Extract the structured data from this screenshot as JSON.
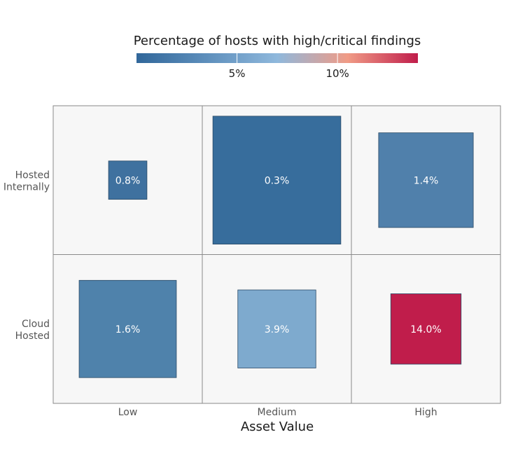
{
  "chart_data": {
    "type": "heatmap",
    "title": "",
    "legend_title": "Percentage of hosts with high/critical findings",
    "legend_ticks": [
      "5%",
      "10%"
    ],
    "legend_tick_values": [
      5,
      10
    ],
    "legend_range": [
      0,
      14
    ],
    "legend_placement": "top",
    "legend_colors": [
      "#31679a",
      "#5e8fbc",
      "#8fb8dc",
      "#f09b86",
      "#c01d4b"
    ],
    "xlabel": "Asset Value",
    "ylabel": "",
    "x_categories": [
      "Low",
      "Medium",
      "High"
    ],
    "y_categories": [
      [
        "Hosted",
        "Internally"
      ],
      [
        "Cloud",
        "Hosted"
      ]
    ],
    "cells": [
      {
        "x": "Low",
        "y": 0,
        "value": 0.8,
        "label": "0.8%",
        "size": 0.3,
        "color": "#3f719f"
      },
      {
        "x": "Medium",
        "y": 0,
        "value": 0.3,
        "label": "0.3%",
        "size": 1.0,
        "color": "#376d9c"
      },
      {
        "x": "High",
        "y": 0,
        "value": 1.4,
        "label": "1.4%",
        "size": 0.74,
        "color": "#5080ab"
      },
      {
        "x": "Low",
        "y": 1,
        "value": 1.6,
        "label": "1.6%",
        "size": 0.76,
        "color": "#4f82ab"
      },
      {
        "x": "Medium",
        "y": 1,
        "value": 3.9,
        "label": "3.9%",
        "size": 0.61,
        "color": "#7eaace"
      },
      {
        "x": "High",
        "y": 1,
        "value": 14.0,
        "label": "14.0%",
        "size": 0.55,
        "color": "#c01d4b"
      }
    ],
    "grid": true
  }
}
